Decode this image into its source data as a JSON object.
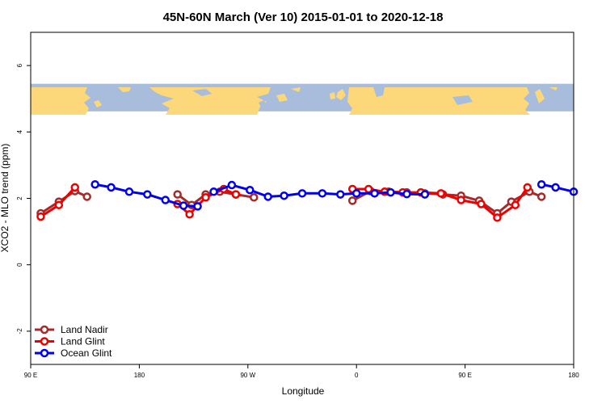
{
  "chart_data": {
    "type": "line",
    "title": "45N-60N March (Ver 10)   2015-01-01 to 2020-12-18",
    "xlabel": "Longitude",
    "ylabel": "XCO2 - MLO trend (ppm)",
    "xlim": [
      -90,
      180
    ],
    "ylim": [
      -3,
      7
    ],
    "x_ticks": [
      {
        "value": -90,
        "label": "90 E"
      },
      {
        "value": -36,
        "label": "180"
      },
      {
        "value": 18,
        "label": "90 W"
      },
      {
        "value": 72,
        "label": "0"
      },
      {
        "value": 126,
        "label": "90 E"
      },
      {
        "value": 180,
        "label": "180"
      }
    ],
    "y_ticks": [
      {
        "value": -2,
        "label": "-2"
      },
      {
        "value": 0,
        "label": "0"
      },
      {
        "value": 2,
        "label": "2"
      },
      {
        "value": 4,
        "label": "4"
      },
      {
        "value": 6,
        "label": "6"
      }
    ],
    "map_strip": {
      "y_min": 4.62,
      "y_max": 5.45,
      "land_color": "#fdd87a",
      "ocean_color": "#a8bcdc"
    },
    "legend_position": "bottom-left",
    "series": [
      {
        "name": "Land Nadir",
        "color": "#a52a2a",
        "segments": [
          [
            [
              -85,
              1.55
            ],
            [
              -76,
              1.9
            ],
            [
              -68,
              2.22
            ],
            [
              -62,
              2.05
            ]
          ],
          [
            [
              -17,
              2.12
            ],
            [
              -10,
              1.8
            ],
            [
              -3,
              2.12
            ],
            [
              4,
              2.2
            ],
            [
              12,
              2.12
            ],
            [
              21,
              2.03
            ]
          ],
          [
            [
              70,
              1.93
            ],
            [
              79,
              2.22
            ],
            [
              88,
              2.2
            ],
            [
              97,
              2.18
            ],
            [
              106,
              2.15
            ],
            [
              115,
              2.12
            ],
            [
              124,
              2.08
            ],
            [
              133,
              1.93
            ],
            [
              142,
              1.55
            ],
            [
              149,
              1.9
            ],
            [
              158,
              2.2
            ],
            [
              164,
              2.05
            ]
          ]
        ]
      },
      {
        "name": "Land Glint",
        "color": "#ee0000",
        "segments": [
          [
            [
              -85,
              1.45
            ],
            [
              -76,
              1.8
            ],
            [
              -68,
              2.33
            ]
          ],
          [
            [
              -17,
              1.83
            ],
            [
              -11,
              1.52
            ],
            [
              -3,
              2.03
            ],
            [
              6,
              2.28
            ],
            [
              12,
              2.12
            ]
          ],
          [
            [
              70,
              2.28
            ],
            [
              78,
              2.28
            ],
            [
              86,
              2.2
            ],
            [
              95,
              2.18
            ],
            [
              104,
              2.18
            ],
            [
              114,
              2.15
            ],
            [
              124,
              1.95
            ],
            [
              134,
              1.83
            ],
            [
              142,
              1.42
            ],
            [
              151,
              1.8
            ],
            [
              157,
              2.33
            ]
          ]
        ]
      },
      {
        "name": "Ocean Glint",
        "color": "#0000ee",
        "segments": [
          [
            [
              -58,
              2.42
            ],
            [
              -50,
              2.33
            ],
            [
              -41,
              2.2
            ],
            [
              -32,
              2.12
            ],
            [
              -23,
              1.95
            ],
            [
              -14,
              1.78
            ],
            [
              -7,
              1.76
            ]
          ],
          [
            [
              1,
              2.2
            ],
            [
              10,
              2.4
            ],
            [
              19,
              2.25
            ],
            [
              28,
              2.05
            ],
            [
              36,
              2.08
            ],
            [
              45,
              2.15
            ],
            [
              55,
              2.15
            ],
            [
              64,
              2.12
            ],
            [
              72,
              2.15
            ],
            [
              81,
              2.15
            ],
            [
              89,
              2.18
            ],
            [
              97,
              2.13
            ],
            [
              106,
              2.12
            ]
          ],
          [
            [
              164,
              2.42
            ],
            [
              171,
              2.33
            ],
            [
              180,
              2.2
            ]
          ]
        ]
      }
    ]
  }
}
